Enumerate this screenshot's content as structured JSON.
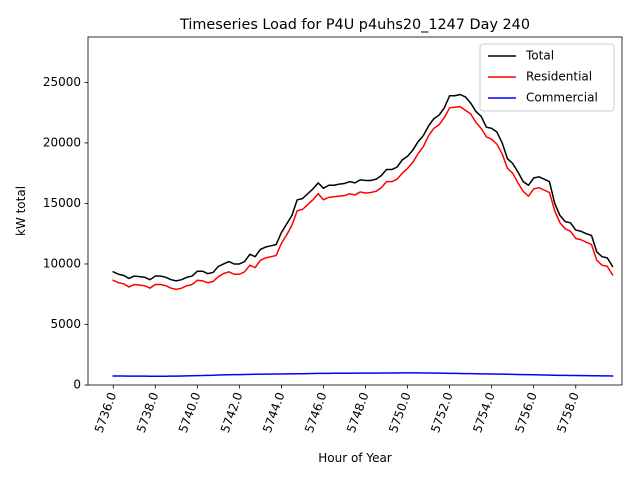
{
  "chart_data": {
    "type": "line",
    "title": "Timeseries Load for P4U p4uhs20_1247  Day 240",
    "xlabel": "Hour of Year",
    "ylabel": "kW total",
    "xlim": [
      5734.8,
      5760.2
    ],
    "ylim": [
      0,
      28750
    ],
    "x_ticks": [
      5736,
      5738,
      5740,
      5742,
      5744,
      5746,
      5748,
      5750,
      5752,
      5754,
      5756,
      5758
    ],
    "x_tick_labels": [
      "5736.0",
      "5738.0",
      "5740.0",
      "5742.0",
      "5744.0",
      "5746.0",
      "5748.0",
      "5750.0",
      "5752.0",
      "5754.0",
      "5756.0",
      "5758.0"
    ],
    "y_ticks": [
      0,
      5000,
      10000,
      15000,
      20000,
      25000
    ],
    "y_tick_labels": [
      "0",
      "5000",
      "10000",
      "15000",
      "20000",
      "25000"
    ],
    "grid": false,
    "legend_position": "upper right",
    "x_start": 5736.0,
    "x_step": 0.25,
    "series": [
      {
        "name": "Total",
        "color": "#000000",
        "values": [
          9350,
          9150,
          9050,
          8800,
          9000,
          8950,
          8900,
          8700,
          9000,
          9000,
          8900,
          8700,
          8600,
          8700,
          8900,
          9000,
          9400,
          9400,
          9200,
          9300,
          9800,
          10000,
          10200,
          10000,
          10000,
          10200,
          10800,
          10600,
          11200,
          11400,
          11500,
          11600,
          12600,
          13300,
          14000,
          15300,
          15400,
          15800,
          16200,
          16700,
          16250,
          16500,
          16500,
          16600,
          16650,
          16800,
          16700,
          16950,
          16900,
          16900,
          17000,
          17300,
          17800,
          17800,
          18000,
          18600,
          18900,
          19400,
          20100,
          20600,
          21400,
          22000,
          22300,
          22900,
          23900,
          23900,
          24000,
          23800,
          23300,
          22600,
          22200,
          21300,
          21200,
          20900,
          20000,
          18700,
          18300,
          17600,
          16800,
          16500,
          17100,
          17200,
          17000,
          16800,
          15000,
          14000,
          13500,
          13400,
          12800,
          12700,
          12500,
          12350,
          11000,
          10600,
          10500,
          9800
        ]
      },
      {
        "name": "Residential",
        "color": "#ff0000",
        "values": [
          8650,
          8450,
          8350,
          8100,
          8300,
          8250,
          8200,
          8000,
          8300,
          8300,
          8200,
          8000,
          7900,
          8000,
          8200,
          8300,
          8650,
          8600,
          8450,
          8550,
          8950,
          9200,
          9350,
          9150,
          9150,
          9350,
          9900,
          9700,
          10300,
          10500,
          10600,
          10700,
          11700,
          12400,
          13200,
          14400,
          14500,
          14900,
          15300,
          15800,
          15300,
          15500,
          15550,
          15600,
          15650,
          15800,
          15700,
          15950,
          15850,
          15900,
          16000,
          16300,
          16800,
          16800,
          17000,
          17500,
          17900,
          18400,
          19100,
          19700,
          20600,
          21200,
          21500,
          22100,
          22900,
          22950,
          23000,
          22700,
          22400,
          21700,
          21200,
          20500,
          20300,
          19900,
          19100,
          17900,
          17500,
          16700,
          16000,
          15600,
          16200,
          16300,
          16100,
          15900,
          14400,
          13400,
          12900,
          12700,
          12100,
          12000,
          11800,
          11600,
          10300,
          9900,
          9800,
          9100
        ]
      },
      {
        "name": "Commercial",
        "color": "#0000ff",
        "values": [
          740,
          740,
          740,
          730,
          730,
          730,
          730,
          720,
          720,
          720,
          720,
          730,
          730,
          740,
          750,
          760,
          770,
          780,
          800,
          810,
          830,
          840,
          850,
          860,
          860,
          870,
          880,
          890,
          890,
          900,
          900,
          910,
          910,
          920,
          920,
          930,
          930,
          940,
          950,
          960,
          960,
          960,
          970,
          970,
          970,
          970,
          980,
          980,
          980,
          980,
          980,
          990,
          990,
          990,
          990,
          1000,
          1000,
          1000,
          1000,
          990,
          990,
          980,
          980,
          970,
          960,
          960,
          950,
          940,
          940,
          930,
          920,
          920,
          910,
          900,
          900,
          890,
          880,
          870,
          860,
          860,
          850,
          840,
          830,
          820,
          810,
          800,
          800,
          790,
          780,
          770,
          770,
          760,
          760,
          750,
          750,
          740
        ]
      }
    ]
  }
}
